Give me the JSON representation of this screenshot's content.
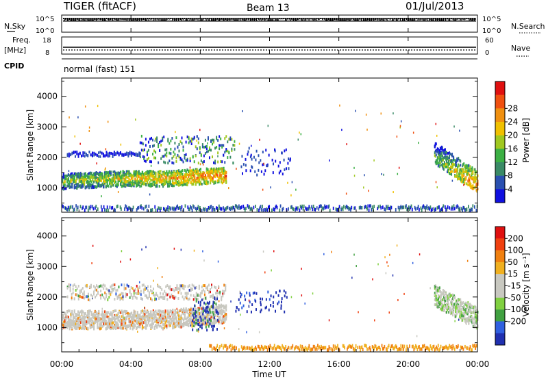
{
  "header": {
    "station": "TIGER (fitACF)",
    "beam": "Beam 13",
    "date": "01/Jul/2013"
  },
  "strips": {
    "nsky": {
      "label": "N.Sky",
      "ticks_left": [
        "10^5",
        "10^0"
      ],
      "right_label": "N.Search",
      "ticks_right": [
        "10^5",
        "10^0"
      ]
    },
    "freq": {
      "label_line1": "Freq.",
      "label_line2": "[MHz]",
      "ticks_left": [
        "18",
        "8"
      ],
      "right_label": "Nave",
      "ticks_right": [
        "60",
        "0"
      ]
    },
    "cpid": {
      "label": "CPID",
      "value": "normal (fast) 151"
    }
  },
  "xaxis": {
    "label": "Time UT",
    "ticks": [
      "00:00",
      "04:00",
      "08:00",
      "12:00",
      "16:00",
      "20:00",
      "00:00"
    ],
    "range_hours": [
      0,
      24
    ]
  },
  "chart_data": [
    {
      "type": "heatmap",
      "panel": "power",
      "ylabel": "Slant Range [km]",
      "yticks": [
        "1000",
        "2000",
        "3000",
        "4000"
      ],
      "ylim": [
        200,
        4600
      ],
      "colorbar": {
        "label": "Power [dB]",
        "ticks": [
          "4",
          "8",
          "12",
          "16",
          "20",
          "24",
          "28"
        ],
        "colors": [
          "#1010e0",
          "#2a50b0",
          "#3a8a66",
          "#3cb044",
          "#a0c820",
          "#f0c000",
          "#f09010",
          "#f05010",
          "#e01010"
        ]
      },
      "echo_regions": [
        {
          "t": [
            0.0,
            10.0
          ],
          "range": [
            800,
            2500
          ],
          "description_level": "mixed"
        },
        {
          "t": [
            21.5,
            24.0
          ],
          "range": [
            800,
            2300
          ],
          "description_level": "mixed"
        },
        {
          "t": [
            8.5,
            24.0
          ],
          "range": [
            200,
            400
          ],
          "description_level": "low"
        }
      ]
    },
    {
      "type": "heatmap",
      "panel": "velocity",
      "ylabel": "Slant Range [km]",
      "yticks": [
        "1000",
        "2000",
        "3000",
        "4000"
      ],
      "ylim": [
        200,
        4600
      ],
      "colorbar": {
        "label": "Velocity [m s⁻¹]",
        "ticks": [
          "200",
          "100",
          "50",
          "15",
          "-15",
          "-50",
          "-100",
          "-200"
        ],
        "colors": [
          "#2030b0",
          "#3060e0",
          "#40a040",
          "#80d040",
          "#c8c8c0",
          "#c8c8c0",
          "#f0b020",
          "#f08010",
          "#f04010",
          "#e01010"
        ]
      }
    }
  ]
}
